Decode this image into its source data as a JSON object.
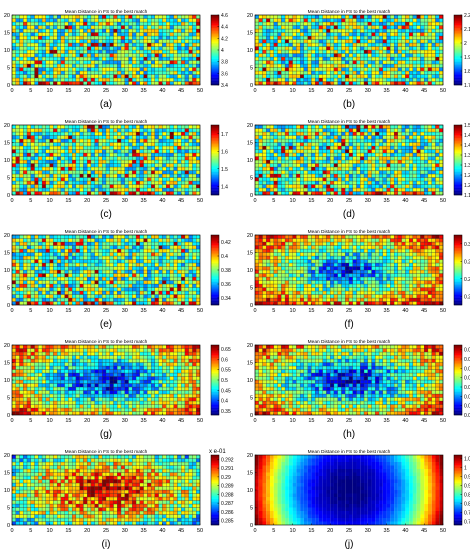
{
  "figure": {
    "panels": [
      {
        "id": "a",
        "title": "Mean Distance in FS to the best match",
        "caption": "(a)",
        "cb_ticks": [
          "4.6",
          "4.4",
          "4.2",
          "4",
          "3.8",
          "3.6",
          "3.4"
        ],
        "cb_exponent": "",
        "pattern": "noise",
        "vmin": 3.4,
        "vmax": 4.6
      },
      {
        "id": "b",
        "title": "Mean Distance in FS to the best match",
        "caption": "(b)",
        "cb_ticks": [
          "2.2",
          "2.1",
          "2",
          "1.9",
          "1.8",
          "1.7"
        ],
        "cb_exponent": "",
        "pattern": "noise",
        "vmin": 1.7,
        "vmax": 2.2
      },
      {
        "id": "c",
        "title": "Mean Distance in FS to the best match",
        "caption": "(c)",
        "cb_ticks": [
          "1.7",
          "1.6",
          "1.5",
          "1.4"
        ],
        "cb_exponent": "",
        "pattern": "noise",
        "vmin": 1.35,
        "vmax": 1.75
      },
      {
        "id": "d",
        "title": "Mean Distance in FS to the best match",
        "caption": "(d)",
        "cb_ticks": [
          "1.5",
          "1.45",
          "1.4",
          "1.35",
          "1.3",
          "1.25",
          "1.2",
          "1.15"
        ],
        "cb_exponent": "",
        "pattern": "noise",
        "vmin": 1.15,
        "vmax": 1.5
      },
      {
        "id": "e",
        "title": "Mean Distance in FS to the best match",
        "caption": "(e)",
        "cb_ticks": [
          "0.42",
          "0.4",
          "0.38",
          "0.36",
          "0.34"
        ],
        "cb_exponent": "",
        "pattern": "noise",
        "vmin": 0.33,
        "vmax": 0.43
      },
      {
        "id": "f",
        "title": "Mean Distance in FS to the best match",
        "caption": "(f)",
        "cb_ticks": [
          "0.3",
          "0.28",
          "0.26",
          "0.24"
        ],
        "cb_exponent": "",
        "pattern": "center-low-mild",
        "vmin": 0.23,
        "vmax": 0.31
      },
      {
        "id": "g",
        "title": "Mean Distance in FS to the best match",
        "caption": "(g)",
        "cb_ticks": [
          "0.65",
          "0.6",
          "0.55",
          "0.5",
          "0.45",
          "0.4",
          "0.35"
        ],
        "cb_exponent": "",
        "pattern": "center-low",
        "vmin": 0.33,
        "vmax": 0.67
      },
      {
        "id": "h",
        "title": "Mean Distance in FS to the best match",
        "caption": "(h)",
        "cb_ticks": [
          "0.021",
          "0.02",
          "0.019",
          "0.018",
          "0.017",
          "0.016",
          "0.015",
          "0.014"
        ],
        "cb_exponent": "",
        "pattern": "center-low",
        "vmin": 0.014,
        "vmax": 0.0215
      },
      {
        "id": "i",
        "title": "Mean Distance in FS to the best match",
        "caption": "(i)",
        "cb_ticks": [
          "0.292",
          "0.291",
          "0.29",
          "0.289",
          "0.288",
          "0.287",
          "0.286",
          "0.285"
        ],
        "cb_exponent": "x e-01",
        "pattern": "center-high",
        "vmin": 0.2845,
        "vmax": 0.2925
      },
      {
        "id": "j",
        "title": "Mean Distance in FS to the best match",
        "caption": "(j)",
        "cb_ticks": [
          "1.05",
          "1",
          "0.95",
          "0.9",
          "0.85",
          "0.8",
          "0.75",
          "0.7"
        ],
        "cb_exponent": "",
        "pattern": "smooth-center-low",
        "vmin": 0.68,
        "vmax": 1.07
      }
    ]
  },
  "chart_data": [
    {
      "type": "heatmap",
      "title": "Mean Distance in FS to the best match",
      "grid": {
        "cols": 50,
        "rows": 20
      },
      "xlim": [
        0,
        50
      ],
      "ylim": [
        0,
        20
      ],
      "xticks": [
        0,
        5,
        10,
        15,
        20,
        25,
        30,
        35,
        40,
        45,
        50
      ],
      "yticks": [
        0,
        5,
        10,
        15,
        20
      ],
      "color_range": [
        3.4,
        4.6
      ],
      "description": "noisy field, values mostly 3.6-4.2 with high cells scattered, especially along bottom row"
    },
    {
      "type": "heatmap",
      "title": "Mean Distance in FS to the best match",
      "grid": {
        "cols": 50,
        "rows": 20
      },
      "xlim": [
        0,
        50
      ],
      "ylim": [
        0,
        20
      ],
      "color_range": [
        1.7,
        2.2
      ],
      "description": "noisy field, high values along bottom row"
    },
    {
      "type": "heatmap",
      "title": "Mean Distance in FS to the best match",
      "grid": {
        "cols": 50,
        "rows": 20
      },
      "xlim": [
        0,
        50
      ],
      "ylim": [
        0,
        20
      ],
      "color_range": [
        1.35,
        1.75
      ],
      "description": "noisy field, high values along bottom row"
    },
    {
      "type": "heatmap",
      "title": "Mean Distance in FS to the best match",
      "grid": {
        "cols": 50,
        "rows": 20
      },
      "xlim": [
        0,
        50
      ],
      "ylim": [
        0,
        20
      ],
      "color_range": [
        1.15,
        1.5
      ],
      "description": "noisy field, high values along bottom row"
    },
    {
      "type": "heatmap",
      "title": "Mean Distance in FS to the best match",
      "grid": {
        "cols": 50,
        "rows": 20
      },
      "xlim": [
        0,
        50
      ],
      "ylim": [
        0,
        20
      ],
      "color_range": [
        0.33,
        0.43
      ],
      "description": "noisy field, mostly mid values"
    },
    {
      "type": "heatmap",
      "title": "Mean Distance in FS to the best match",
      "grid": {
        "cols": 50,
        "rows": 20
      },
      "xlim": [
        0,
        50
      ],
      "ylim": [
        0,
        20
      ],
      "color_range": [
        0.23,
        0.31
      ],
      "description": "low values in center, higher at edges"
    },
    {
      "type": "heatmap",
      "title": "Mean Distance in FS to the best match",
      "grid": {
        "cols": 50,
        "rows": 20
      },
      "xlim": [
        0,
        50
      ],
      "ylim": [
        0,
        20
      ],
      "color_range": [
        0.33,
        0.67
      ],
      "description": "low values in center, high at edges and corners"
    },
    {
      "type": "heatmap",
      "title": "Mean Distance in FS to the best match",
      "grid": {
        "cols": 50,
        "rows": 20
      },
      "xlim": [
        0,
        50
      ],
      "ylim": [
        0,
        20
      ],
      "color_range": [
        0.014,
        0.0215
      ],
      "description": "low values in center, high at edges and corners"
    },
    {
      "type": "heatmap",
      "title": "Mean Distance in FS to the best match",
      "grid": {
        "cols": 50,
        "rows": 20
      },
      "xlim": [
        0,
        50
      ],
      "ylim": [
        0,
        20
      ],
      "color_range": [
        0.2845,
        0.2925
      ],
      "colorbar_exponent": "x e-01",
      "description": "high values in center, lower toward edges"
    },
    {
      "type": "heatmap",
      "title": "Mean Distance in FS to the best match",
      "grid": {
        "cols": 50,
        "rows": 20
      },
      "xlim": [
        0,
        50
      ],
      "ylim": [
        0,
        20
      ],
      "color_range": [
        0.68,
        1.07
      ],
      "description": "smooth bowl: minimum at center, maximum at left and right edges"
    }
  ]
}
